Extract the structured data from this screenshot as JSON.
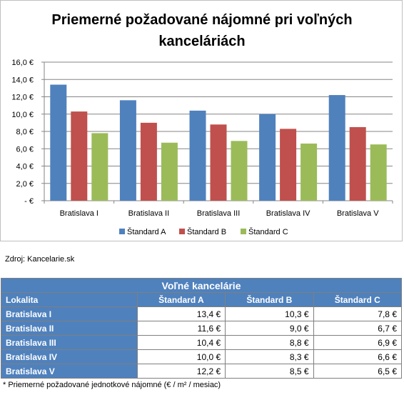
{
  "chart_data": {
    "type": "bar",
    "title_lines": [
      "Priemerné požadované nájomné pri voľných",
      "kanceláriách"
    ],
    "categories": [
      "Bratislava I",
      "Bratislava II",
      "Bratislava III",
      "Bratislava IV",
      "Bratislava V"
    ],
    "series": [
      {
        "name": "Štandard A",
        "color": "#4f81bd",
        "values": [
          13.4,
          11.6,
          10.4,
          10.0,
          12.2
        ]
      },
      {
        "name": "Štandard B",
        "color": "#c0504d",
        "values": [
          10.3,
          9.0,
          8.8,
          8.3,
          8.5
        ]
      },
      {
        "name": "Štandard C",
        "color": "#9bbb59",
        "values": [
          7.8,
          6.7,
          6.9,
          6.6,
          6.5
        ]
      }
    ],
    "ylim": [
      0,
      16
    ],
    "y_ticks": [
      "16,0 €",
      "14,0 €",
      "12,0 €",
      "10,0 €",
      "8,0 €",
      "6,0 €",
      "4,0 €",
      "2,0 €",
      "-   €"
    ],
    "grid": true,
    "legend": "bottom"
  },
  "source": "Zdroj: Kancelarie.sk",
  "table": {
    "title": "Voľné kancelárie",
    "headers": [
      "Lokalita",
      "Štandard A",
      "Štandard B",
      "Štandard C"
    ],
    "rows": [
      {
        "label": "Bratislava I",
        "a": "13,4 €",
        "b": "10,3 €",
        "c": "7,8 €"
      },
      {
        "label": "Bratislava II",
        "a": "11,6 €",
        "b": "9,0 €",
        "c": "6,7 €"
      },
      {
        "label": "Bratislava III",
        "a": "10,4 €",
        "b": "8,8 €",
        "c": "6,9 €"
      },
      {
        "label": "Bratislava IV",
        "a": "10,0 €",
        "b": "8,3 €",
        "c": "6,6 €"
      },
      {
        "label": "Bratislava V",
        "a": "12,2 €",
        "b": "8,5 €",
        "c": "6,5 €"
      }
    ]
  },
  "footnote": "* Priemerné požadované jednotkové nájomné (€ / m² / mesiac)"
}
